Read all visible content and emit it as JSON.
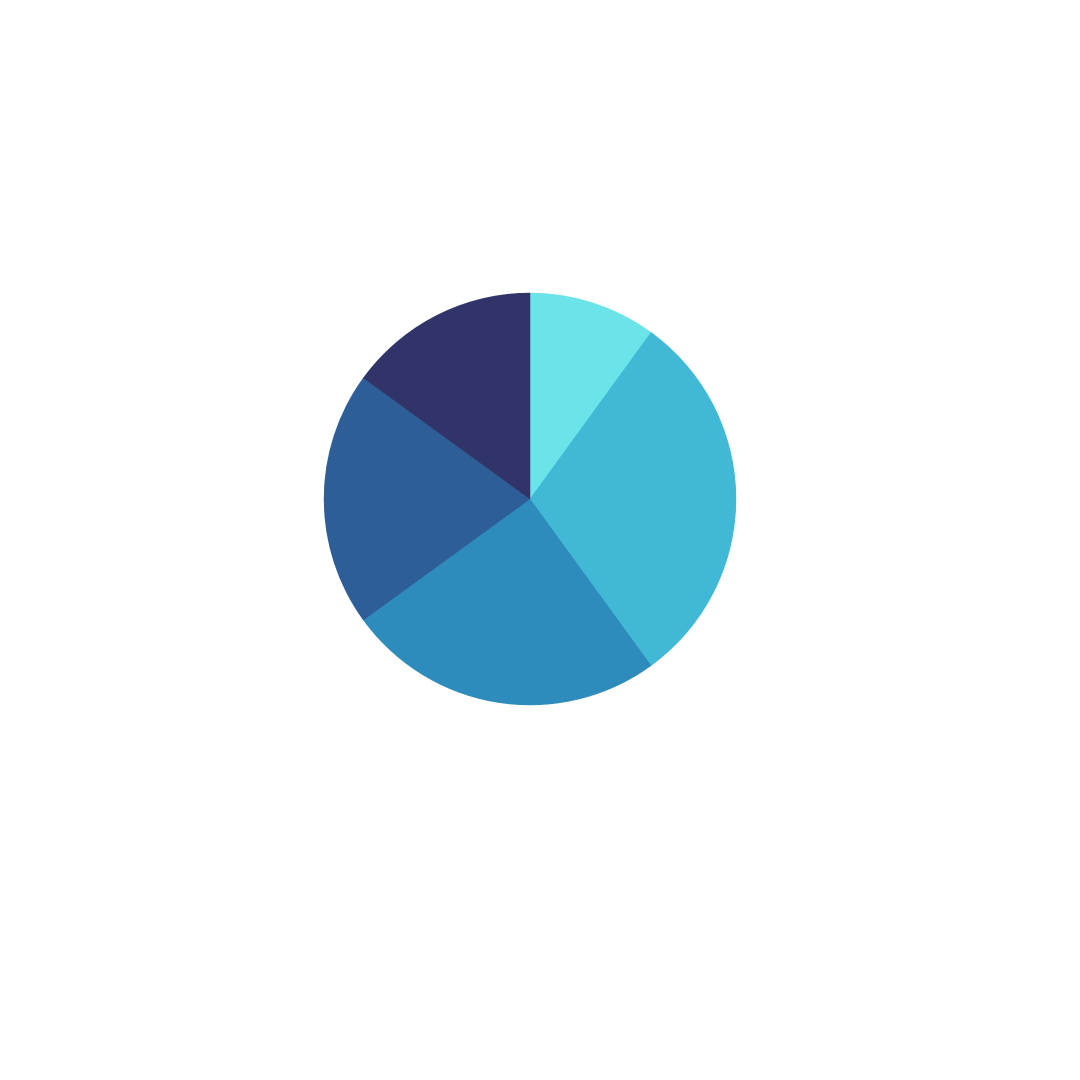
{
  "chart_data": {
    "type": "pie",
    "values": [
      10,
      30,
      25,
      20,
      15
    ],
    "colors": [
      "#6ae4e8",
      "#42b8d7",
      "#2d8cbb",
      "#2e5e97",
      "#303468"
    ]
  }
}
